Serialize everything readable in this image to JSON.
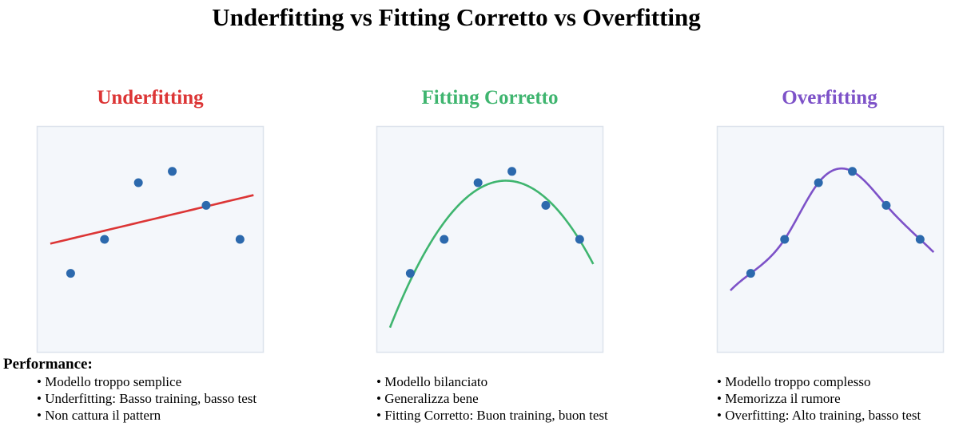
{
  "title": "Underfitting vs Fitting Corretto vs Overfitting",
  "performance_heading": "Performance:",
  "colors": {
    "underfit": "#dc3535",
    "good": "#3fb56f",
    "overfit": "#7d52c8",
    "points": "#2c69ad",
    "plot_bg": "#f4f7fb",
    "plot_border": "#dde3ec"
  },
  "panels": [
    {
      "key": "underfit",
      "title": "Underfitting",
      "bullets": [
        "Modello troppo semplice",
        "Underfitting: Basso training, basso test",
        "Non cattura il pattern"
      ]
    },
    {
      "key": "good",
      "title": "Fitting Corretto",
      "bullets": [
        "Modello bilanciato",
        "Generalizza bene",
        "Fitting Corretto: Buon training, buon test"
      ]
    },
    {
      "key": "overfit",
      "title": "Overfitting",
      "bullets": [
        "Modello troppo complesso",
        "Memorizza il rumore",
        "Overfitting: Alto training, basso test"
      ]
    }
  ],
  "chart_data": {
    "type": "scatter",
    "points": [
      {
        "x": 1,
        "y": 1
      },
      {
        "x": 2,
        "y": 2.5
      },
      {
        "x": 3,
        "y": 5
      },
      {
        "x": 4,
        "y": 5.5
      },
      {
        "x": 5,
        "y": 4
      },
      {
        "x": 6,
        "y": 2.5
      }
    ],
    "fits": {
      "underfit": {
        "kind": "linear",
        "x_range": [
          0.4,
          6.4
        ]
      },
      "good": {
        "kind": "quadratic",
        "x_range": [
          0.4,
          6.4
        ]
      },
      "overfit": {
        "kind": "interpolating spline",
        "x_range": [
          0.4,
          6.4
        ]
      }
    },
    "xlim": [
      0,
      6.7
    ],
    "ylim": [
      -2.5,
      7.5
    ]
  }
}
